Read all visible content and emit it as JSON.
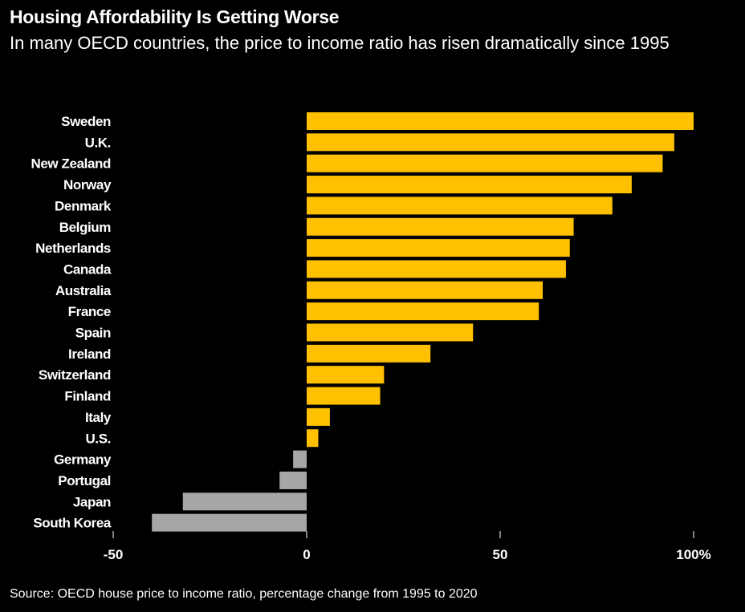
{
  "title": "Housing Affordability Is Getting Worse",
  "subtitle": "In many OECD countries, the price to income ratio has risen dramatically since 1995",
  "source": "Source: OECD house price to income ratio, percentage change from 1995 to 2020",
  "colors": {
    "background": "#000000",
    "positive": "#FFC000",
    "negative": "#A6A6A6",
    "text": "#FFFFFF"
  },
  "chart_data": {
    "type": "bar",
    "orientation": "horizontal",
    "categories": [
      "Sweden",
      "U.K.",
      "New Zealand",
      "Norway",
      "Denmark",
      "Belgium",
      "Netherlands",
      "Canada",
      "Australia",
      "France",
      "Spain",
      "Ireland",
      "Switzerland",
      "Finland",
      "Italy",
      "U.S.",
      "Germany",
      "Portugal",
      "Japan",
      "South Korea"
    ],
    "values": [
      100,
      95,
      92,
      84,
      79,
      69,
      68,
      67,
      61,
      60,
      43,
      32,
      20,
      19,
      6,
      3,
      -3.5,
      -7,
      -32,
      -40
    ],
    "xlim": [
      -50,
      100
    ],
    "xticks": [
      -50,
      0,
      50,
      100
    ],
    "xtick_labels": [
      "-50",
      "0",
      "50",
      "100%"
    ],
    "title": "Housing Affordability Is Getting Worse",
    "xlabel": "",
    "ylabel": "",
    "grid": false,
    "legend": "none"
  }
}
